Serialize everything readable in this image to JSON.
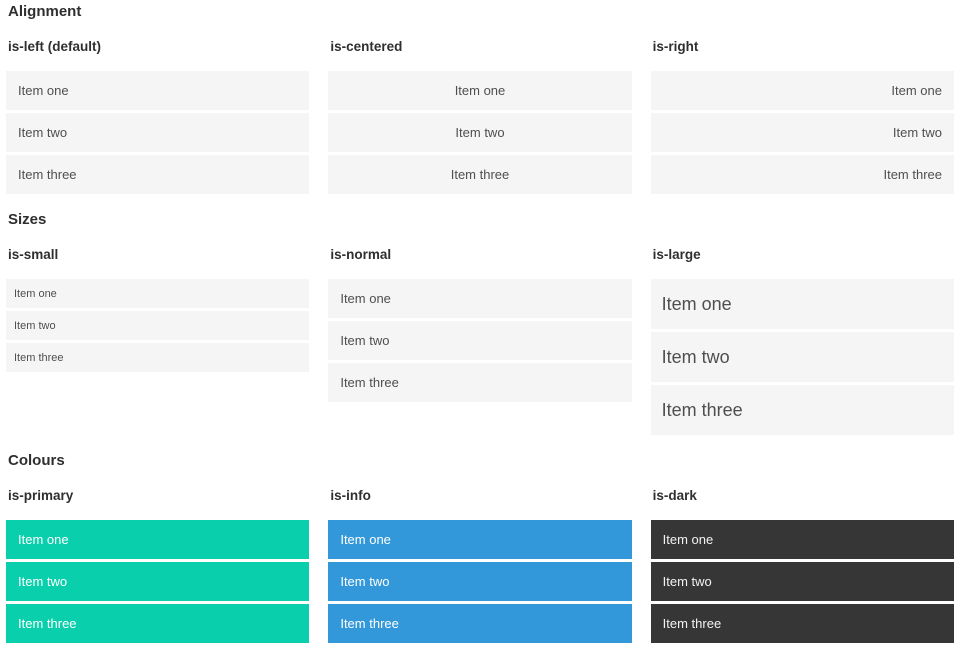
{
  "sections": [
    {
      "title": "Alignment",
      "groups": [
        {
          "label": "is-left (default)",
          "items": [
            "Item one",
            "Item two",
            "Item three"
          ]
        },
        {
          "label": "is-centered",
          "items": [
            "Item one",
            "Item two",
            "Item three"
          ]
        },
        {
          "label": "is-right",
          "items": [
            "Item one",
            "Item two",
            "Item three"
          ]
        }
      ]
    },
    {
      "title": "Sizes",
      "groups": [
        {
          "label": "is-small",
          "items": [
            "Item one",
            "Item two",
            "Item three"
          ]
        },
        {
          "label": "is-normal",
          "items": [
            "Item one",
            "Item two",
            "Item three"
          ]
        },
        {
          "label": "is-large",
          "items": [
            "Item one",
            "Item two",
            "Item three"
          ]
        }
      ]
    },
    {
      "title": "Colours",
      "groups": [
        {
          "label": "is-primary",
          "items": [
            "Item one",
            "Item two",
            "Item three"
          ]
        },
        {
          "label": "is-info",
          "items": [
            "Item one",
            "Item two",
            "Item three"
          ]
        },
        {
          "label": "is-dark",
          "items": [
            "Item one",
            "Item two",
            "Item three"
          ]
        }
      ]
    }
  ],
  "colors": {
    "primary": "#0acfac",
    "info": "#3398da",
    "dark": "#363636",
    "item_background": "#f5f5f5",
    "item_text": "#4f4f4f",
    "heading_text": "#2f2f2f"
  }
}
